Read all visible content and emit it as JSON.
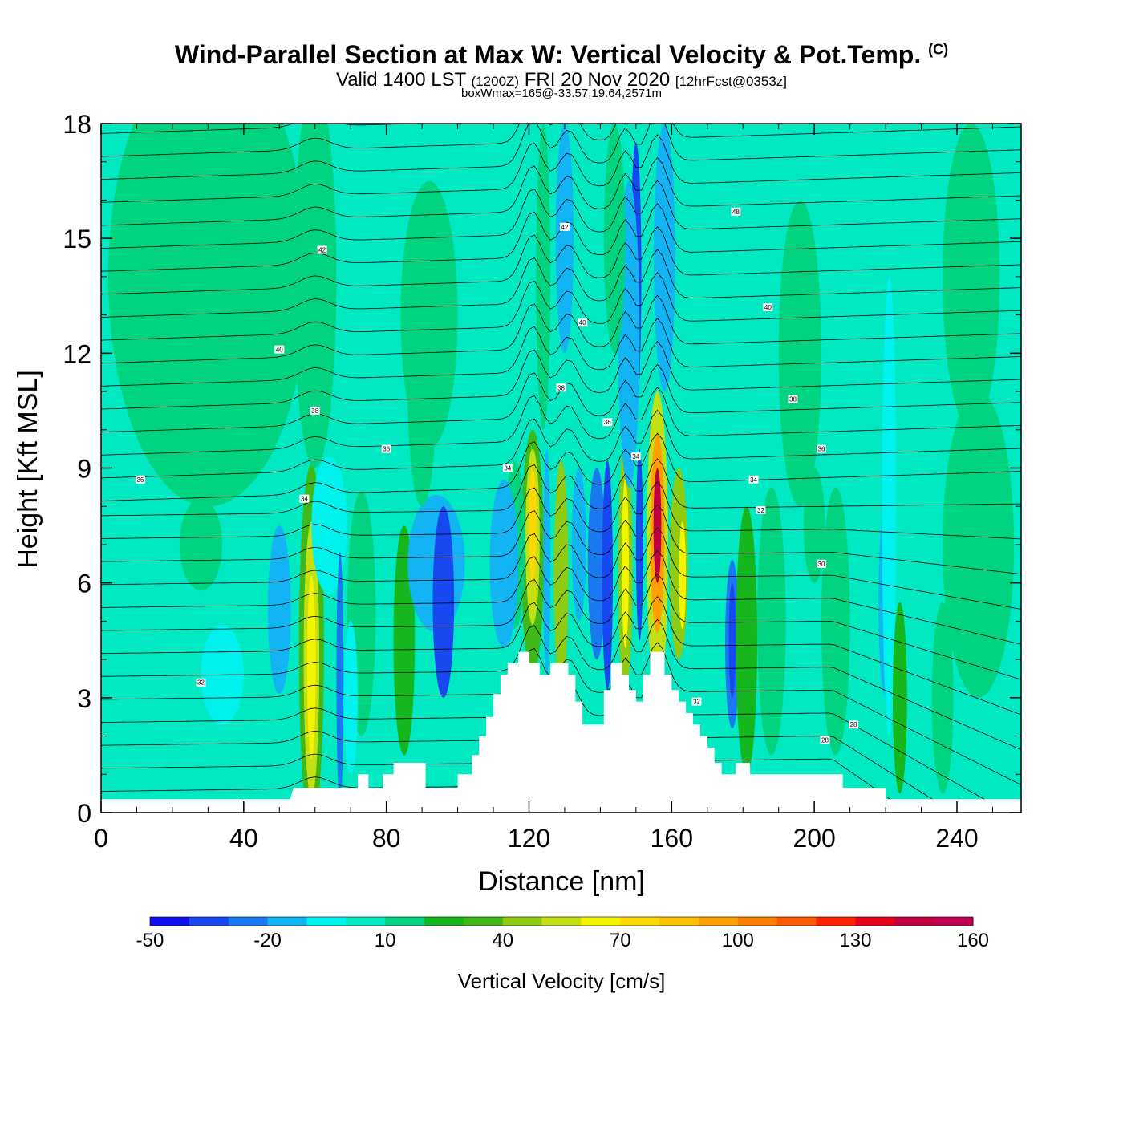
{
  "title": {
    "line1": "Wind-Parallel Section at Max W: Vertical Velocity & Pot.Temp.",
    "copyright": "(C)",
    "line2_main": "Valid 1400 LST",
    "line2_zulu": "(1200Z)",
    "line2_date": "FRI 20 Nov 2020",
    "line2_fcst": "[12hrFcst@0353z]",
    "line3": "boxWmax=165@-33.57,19.64,2571m"
  },
  "chart_data": {
    "type": "heatmap",
    "xlabel": "Distance [nm]",
    "ylabel": "Height [Kft MSL]",
    "xlim": [
      0,
      258
    ],
    "ylim": [
      0,
      18
    ],
    "xticks": [
      0,
      40,
      80,
      120,
      160,
      200,
      240
    ],
    "xtick_labels": [
      "0",
      "40",
      "80",
      "120",
      "160",
      "200",
      "240"
    ],
    "yticks": [
      0,
      3,
      6,
      9,
      12,
      15,
      18
    ],
    "ytick_labels": [
      "0",
      "3",
      "6",
      "9",
      "12",
      "15",
      "18"
    ],
    "background_value": 5,
    "terrain": [
      [
        0,
        0.35
      ],
      [
        53,
        0.35
      ],
      [
        54,
        0.65
      ],
      [
        72,
        0.65
      ],
      [
        72,
        1.0
      ],
      [
        75,
        1.0
      ],
      [
        75,
        0.65
      ],
      [
        79,
        0.65
      ],
      [
        79,
        1.0
      ],
      [
        82,
        1.0
      ],
      [
        82,
        1.3
      ],
      [
        91,
        1.3
      ],
      [
        91,
        0.65
      ],
      [
        100,
        0.65
      ],
      [
        100,
        1.0
      ],
      [
        104,
        1.0
      ],
      [
        104,
        1.5
      ],
      [
        106,
        1.5
      ],
      [
        106,
        2.0
      ],
      [
        108,
        2.0
      ],
      [
        108,
        2.5
      ],
      [
        110,
        2.5
      ],
      [
        110,
        3.1
      ],
      [
        112,
        3.1
      ],
      [
        112,
        3.6
      ],
      [
        114,
        3.6
      ],
      [
        114,
        3.9
      ],
      [
        117,
        3.9
      ],
      [
        117,
        4.2
      ],
      [
        120,
        4.2
      ],
      [
        120,
        3.9
      ],
      [
        123,
        3.9
      ],
      [
        123,
        3.6
      ],
      [
        126,
        3.6
      ],
      [
        126,
        3.9
      ],
      [
        131,
        3.9
      ],
      [
        131,
        3.6
      ],
      [
        133,
        3.6
      ],
      [
        133,
        2.9
      ],
      [
        135,
        2.9
      ],
      [
        135,
        2.3
      ],
      [
        141,
        2.3
      ],
      [
        141,
        3.2
      ],
      [
        143,
        3.2
      ],
      [
        143,
        3.9
      ],
      [
        146,
        3.9
      ],
      [
        146,
        3.6
      ],
      [
        148,
        3.6
      ],
      [
        148,
        3.2
      ],
      [
        150,
        3.2
      ],
      [
        150,
        2.9
      ],
      [
        152,
        2.9
      ],
      [
        152,
        3.6
      ],
      [
        154,
        3.6
      ],
      [
        154,
        4.2
      ],
      [
        158,
        4.2
      ],
      [
        158,
        3.6
      ],
      [
        160,
        3.6
      ],
      [
        160,
        3.2
      ],
      [
        162,
        3.2
      ],
      [
        162,
        2.9
      ],
      [
        164,
        2.9
      ],
      [
        164,
        2.6
      ],
      [
        166,
        2.6
      ],
      [
        166,
        2.3
      ],
      [
        168,
        2.3
      ],
      [
        168,
        2.0
      ],
      [
        170,
        2.0
      ],
      [
        170,
        1.7
      ],
      [
        172,
        1.7
      ],
      [
        172,
        1.3
      ],
      [
        174,
        1.3
      ],
      [
        174,
        1.0
      ],
      [
        178,
        1.0
      ],
      [
        178,
        1.3
      ],
      [
        182,
        1.3
      ],
      [
        182,
        1.0
      ],
      [
        208,
        1.0
      ],
      [
        208,
        0.65
      ],
      [
        220,
        0.65
      ],
      [
        220,
        0.35
      ],
      [
        258,
        0.35
      ]
    ],
    "cells": [
      {
        "x": 59,
        "y": 4.3,
        "rx": 3.5,
        "ry": 4.8,
        "v": 30
      },
      {
        "x": 59,
        "y": 4.0,
        "rx": 2.2,
        "ry": 3.6,
        "v": 50
      },
      {
        "x": 59,
        "y": 3.8,
        "rx": 1.2,
        "ry": 2.4,
        "v": 62
      },
      {
        "x": 50,
        "y": 5.3,
        "rx": 3.2,
        "ry": 2.2,
        "v": -15
      },
      {
        "x": 64,
        "y": 7.5,
        "rx": 5,
        "ry": 1.8,
        "v": -5
      },
      {
        "x": 34,
        "y": 3.6,
        "rx": 6,
        "ry": 1.3,
        "v": -10
      },
      {
        "x": 67,
        "y": 3.5,
        "rx": 1,
        "ry": 3.3,
        "v": -30
      },
      {
        "x": 73,
        "y": 5.2,
        "rx": 4,
        "ry": 3.2,
        "v": 15
      },
      {
        "x": 85,
        "y": 4.5,
        "rx": 3,
        "ry": 3,
        "v": 25
      },
      {
        "x": 94,
        "y": 6.5,
        "rx": 8,
        "ry": 1.8,
        "v": -18
      },
      {
        "x": 96,
        "y": 5.5,
        "rx": 3,
        "ry": 2.5,
        "v": -35
      },
      {
        "x": 70,
        "y": 3,
        "rx": 2,
        "ry": 2,
        "v": -8
      },
      {
        "x": 121,
        "y": 6.8,
        "rx": 3.2,
        "ry": 3.2,
        "v": 35
      },
      {
        "x": 121,
        "y": 7.2,
        "rx": 2,
        "ry": 2.3,
        "v": 58
      },
      {
        "x": 121,
        "y": 7.5,
        "rx": 1.1,
        "ry": 1.5,
        "v": 70
      },
      {
        "x": 116,
        "y": 7,
        "rx": 3,
        "ry": 2.2,
        "v": 12
      },
      {
        "x": 113,
        "y": 6.5,
        "rx": 4,
        "ry": 2.2,
        "v": -12
      },
      {
        "x": 129,
        "y": 6.2,
        "rx": 2,
        "ry": 3,
        "v": 40
      },
      {
        "x": 125,
        "y": 6.5,
        "rx": 1,
        "ry": 3,
        "v": -20
      },
      {
        "x": 134,
        "y": 7,
        "rx": 2,
        "ry": 2,
        "v": -18
      },
      {
        "x": 139,
        "y": 6.5,
        "rx": 2.5,
        "ry": 2.5,
        "v": -30
      },
      {
        "x": 142,
        "y": 6.2,
        "rx": 1.5,
        "ry": 3,
        "v": -40
      },
      {
        "x": 147,
        "y": 6.4,
        "rx": 2,
        "ry": 3.3,
        "v": 40
      },
      {
        "x": 147,
        "y": 6.5,
        "rx": 1,
        "ry": 2.2,
        "v": 68
      },
      {
        "x": 151,
        "y": 7,
        "rx": 1,
        "ry": 2.5,
        "v": -40
      },
      {
        "x": 156,
        "y": 7,
        "rx": 3,
        "ry": 4,
        "v": 55
      },
      {
        "x": 156,
        "y": 7.3,
        "rx": 2,
        "ry": 2.6,
        "v": 90
      },
      {
        "x": 156,
        "y": 7.5,
        "rx": 1.1,
        "ry": 1.5,
        "v": 140
      },
      {
        "x": 162,
        "y": 6.5,
        "rx": 2.5,
        "ry": 2.5,
        "v": 42
      },
      {
        "x": 163,
        "y": 6.2,
        "rx": 1,
        "ry": 1.4,
        "v": 62
      },
      {
        "x": 150,
        "y": 14,
        "rx": 1.5,
        "ry": 3.5,
        "v": -35
      },
      {
        "x": 148,
        "y": 12.5,
        "rx": 3,
        "ry": 4,
        "v": -12
      },
      {
        "x": 158,
        "y": 14.5,
        "rx": 3,
        "ry": 3.5,
        "v": -12
      },
      {
        "x": 130,
        "y": 15,
        "rx": 2.5,
        "ry": 3,
        "v": -12
      },
      {
        "x": 124,
        "y": 14,
        "rx": 2,
        "ry": 4,
        "v": 15
      },
      {
        "x": 144,
        "y": 15,
        "rx": 3,
        "ry": 3,
        "v": 15
      },
      {
        "x": 177,
        "y": 4.4,
        "rx": 2,
        "ry": 2.2,
        "v": -25
      },
      {
        "x": 177,
        "y": 4.5,
        "rx": 1,
        "ry": 1.5,
        "v": -40
      },
      {
        "x": 181,
        "y": 4.5,
        "rx": 3,
        "ry": 3.5,
        "v": 25
      },
      {
        "x": 188,
        "y": 5,
        "rx": 4,
        "ry": 3.5,
        "v": 15
      },
      {
        "x": 206,
        "y": 5,
        "rx": 4,
        "ry": 3.5,
        "v": 15
      },
      {
        "x": 220,
        "y": 5.5,
        "rx": 2,
        "ry": 2.5,
        "v": -20
      },
      {
        "x": 221,
        "y": 8,
        "rx": 2,
        "ry": 6,
        "v": -10
      },
      {
        "x": 224,
        "y": 3,
        "rx": 2,
        "ry": 2.5,
        "v": 25
      },
      {
        "x": 236,
        "y": 3,
        "rx": 3,
        "ry": 2.5,
        "v": 18
      },
      {
        "x": 246,
        "y": 7,
        "rx": 10,
        "ry": 4,
        "v": 15
      },
      {
        "x": 30,
        "y": 14,
        "rx": 28,
        "ry": 6,
        "v": 15
      },
      {
        "x": 60,
        "y": 14,
        "rx": 6,
        "ry": 5,
        "v": 15
      },
      {
        "x": 92,
        "y": 13,
        "rx": 8,
        "ry": 3.5,
        "v": 12
      },
      {
        "x": 196,
        "y": 12,
        "rx": 6,
        "ry": 4,
        "v": 12
      },
      {
        "x": 244,
        "y": 14,
        "rx": 8,
        "ry": 4,
        "v": 12
      },
      {
        "x": 200,
        "y": 7.5,
        "rx": 3,
        "ry": 1.5,
        "v": 12
      },
      {
        "x": 28,
        "y": 7,
        "rx": 6,
        "ry": 1.2,
        "v": 12
      },
      {
        "x": 90,
        "y": 11,
        "rx": 4,
        "ry": 3,
        "v": 12
      }
    ],
    "theta_labels": [
      {
        "x": 62,
        "y": 14.7,
        "text": "42"
      },
      {
        "x": 50,
        "y": 12.1,
        "text": "40"
      },
      {
        "x": 60,
        "y": 10.5,
        "text": "38"
      },
      {
        "x": 80,
        "y": 9.5,
        "text": "36"
      },
      {
        "x": 57,
        "y": 8.2,
        "text": "34"
      },
      {
        "x": 11,
        "y": 8.7,
        "text": "36"
      },
      {
        "x": 28,
        "y": 3.4,
        "text": "32"
      },
      {
        "x": 130,
        "y": 15.3,
        "text": "42"
      },
      {
        "x": 135,
        "y": 12.8,
        "text": "40"
      },
      {
        "x": 129,
        "y": 11.1,
        "text": "38"
      },
      {
        "x": 142,
        "y": 10.2,
        "text": "36"
      },
      {
        "x": 150,
        "y": 9.3,
        "text": "34"
      },
      {
        "x": 114,
        "y": 9.0,
        "text": "34"
      },
      {
        "x": 178,
        "y": 15.7,
        "text": "48"
      },
      {
        "x": 187,
        "y": 13.2,
        "text": "40"
      },
      {
        "x": 194,
        "y": 10.8,
        "text": "38"
      },
      {
        "x": 202,
        "y": 9.5,
        "text": "36"
      },
      {
        "x": 183,
        "y": 8.7,
        "text": "34"
      },
      {
        "x": 185,
        "y": 7.9,
        "text": "32"
      },
      {
        "x": 202,
        "y": 6.5,
        "text": "30"
      },
      {
        "x": 167,
        "y": 2.9,
        "text": "32"
      },
      {
        "x": 203,
        "y": 1.9,
        "text": "28"
      },
      {
        "x": 211,
        "y": 2.3,
        "text": "28"
      }
    ],
    "colorbar": {
      "label": "Vertical Velocity [cm/s]",
      "levels": [
        -50,
        -40,
        -30,
        -20,
        -10,
        0,
        10,
        20,
        30,
        40,
        50,
        60,
        70,
        80,
        90,
        100,
        110,
        120,
        130,
        140,
        150,
        160
      ],
      "colors": [
        "#1010ee",
        "#1848f0",
        "#1a78f0",
        "#12b4f4",
        "#00f2ee",
        "#00e9c2",
        "#00d480",
        "#16b61e",
        "#40b818",
        "#8ecb12",
        "#c2e014",
        "#f4f400",
        "#ffd802",
        "#ffc000",
        "#ffa000",
        "#ff7e00",
        "#ff5a00",
        "#ff2200",
        "#e8001a",
        "#c00040",
        "#c00050"
      ],
      "tick_values": [
        -50,
        -20,
        10,
        40,
        70,
        100,
        130,
        160
      ],
      "tick_labels": [
        "-50",
        "-20",
        "10",
        "40",
        "70",
        "100",
        "130",
        "160"
      ]
    }
  }
}
